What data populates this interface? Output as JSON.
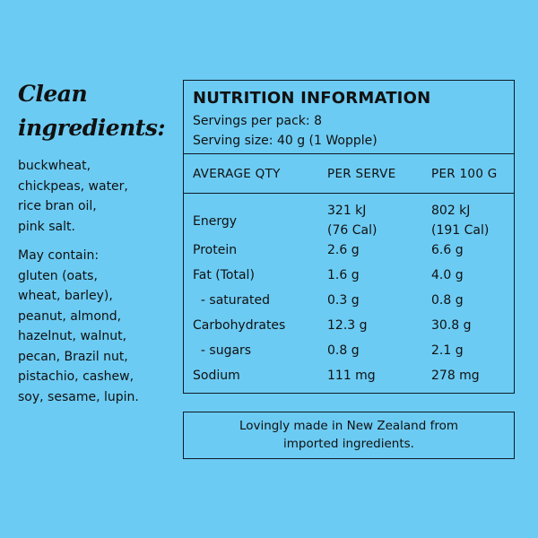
{
  "ingredients_section": {
    "heading_line1": "Clean",
    "heading_line2": "ingredients:",
    "ingredients": [
      "buckwheat,",
      "chickpeas, water,",
      "rice bran oil,",
      "pink salt."
    ],
    "may_contain_label": "May contain:",
    "allergens": [
      "gluten (oats,",
      "wheat, barley),",
      "peanut, almond,",
      "hazelnut, walnut,",
      "pecan, Brazil nut,",
      "pistachio, cashew,",
      "soy, sesame, lupin."
    ]
  },
  "nutrition": {
    "title": "NUTRITION INFORMATION",
    "servings_per_pack": "Servings per pack: 8",
    "serving_size": "Serving size: 40 g (1 Wopple)",
    "columns": [
      "AVERAGE QTY",
      "PER SERVE",
      "PER 100 G"
    ],
    "rows": [
      {
        "name": "Energy",
        "per_serve": [
          "321 kJ",
          "(76 Cal)"
        ],
        "per_100g": [
          "802 kJ",
          "(191 Cal)"
        ]
      },
      {
        "name": "Protein",
        "per_serve": [
          "2.6 g"
        ],
        "per_100g": [
          "6.6 g"
        ]
      },
      {
        "name": "Fat (Total)",
        "per_serve": [
          "1.6 g"
        ],
        "per_100g": [
          "4.0 g"
        ]
      },
      {
        "name": "  - saturated",
        "per_serve": [
          "0.3 g"
        ],
        "per_100g": [
          "0.8 g"
        ]
      },
      {
        "name": "Carbohydrates",
        "per_serve": [
          "12.3 g"
        ],
        "per_100g": [
          "30.8 g"
        ]
      },
      {
        "name": "  - sugars",
        "per_serve": [
          "0.8 g"
        ],
        "per_100g": [
          "2.1 g"
        ]
      },
      {
        "name": "Sodium",
        "per_serve": [
          "111 mg"
        ],
        "per_100g": [
          "278 mg"
        ]
      }
    ]
  },
  "footer": {
    "line1": "Lovingly made in New Zealand from",
    "line2": "imported ingredients."
  },
  "colors": {
    "background": "#6ccbf3",
    "text": "#111111",
    "border": "#0d1a26"
  }
}
